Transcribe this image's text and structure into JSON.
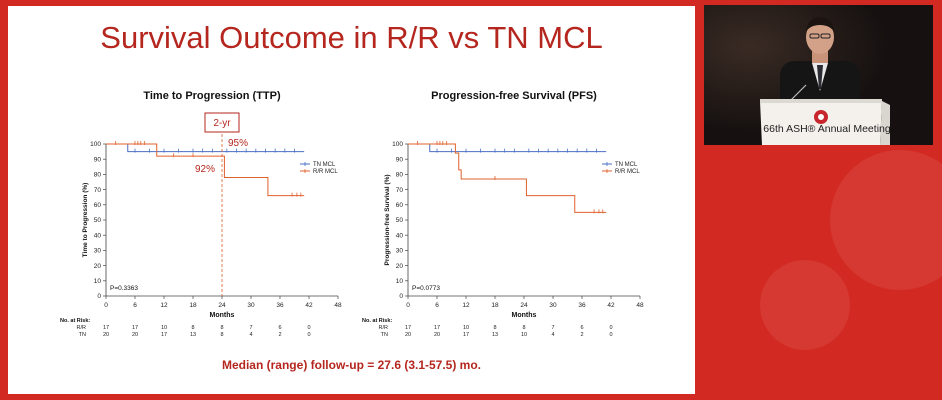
{
  "slide": {
    "title": "Survival Outcome in R/R vs TN MCL",
    "footnote": "Median (range) follow-up = 27.6 (3.1-57.5) mo."
  },
  "video": {
    "podium_text": "66th ASH® Annual Meeting"
  },
  "colors": {
    "background": "#d22a23",
    "accent": "#b5261e",
    "tn_series": "#4a6fc6",
    "rr_series": "#e0612c"
  },
  "chart_data": [
    {
      "type": "line",
      "title": "Time to Progression (TTP)",
      "xlabel": "Months",
      "ylabel": "Time to Progression (%)",
      "xlim": [
        0,
        48
      ],
      "ylim": [
        0,
        100
      ],
      "xticks": [
        0,
        6,
        12,
        18,
        24,
        30,
        36,
        42,
        48
      ],
      "yticks": [
        0,
        10,
        20,
        30,
        40,
        50,
        60,
        70,
        80,
        90,
        100
      ],
      "p_value": "P=0.3363",
      "legend_position": "top-right",
      "series": [
        {
          "name": "TN MCL",
          "step_x": [
            0,
            4.5,
            41
          ],
          "step_y": [
            100,
            95,
            95
          ],
          "censor_x": [
            6,
            9,
            12,
            15,
            18,
            20,
            22,
            25,
            27,
            29,
            31,
            33,
            35,
            37,
            39
          ]
        },
        {
          "name": "R/R MCL",
          "step_x": [
            0,
            10.5,
            24.5,
            33.5,
            41
          ],
          "step_y": [
            100,
            92,
            78,
            66,
            66
          ],
          "censor_x": [
            2,
            6,
            6.6,
            7.2,
            8,
            14,
            18,
            38.5,
            39.5,
            40.3
          ]
        }
      ],
      "annotations": {
        "box_label": "2-yr",
        "box_x": 24,
        "tn_at_box": "95%",
        "rr_at_box": "92%"
      },
      "risk_table": {
        "header": "No. at Risk:",
        "timepoints": [
          0,
          6,
          12,
          18,
          24,
          30,
          36,
          42
        ],
        "rows": [
          {
            "label": "R/R",
            "values": [
              "17",
              "17",
              "10",
              "8",
              "8",
              "7",
              "6",
              "0"
            ]
          },
          {
            "label": "TN",
            "values": [
              "20",
              "20",
              "17",
              "13",
              "8",
              "4",
              "2",
              "0"
            ]
          }
        ]
      }
    },
    {
      "type": "line",
      "title": "Progression-free Survival (PFS)",
      "xlabel": "Months",
      "ylabel": "Progression-free Survival (%)",
      "xlim": [
        0,
        48
      ],
      "ylim": [
        0,
        100
      ],
      "xticks": [
        0,
        6,
        12,
        18,
        24,
        30,
        36,
        42,
        48
      ],
      "yticks": [
        0,
        10,
        20,
        30,
        40,
        50,
        60,
        70,
        80,
        90,
        100
      ],
      "p_value": "P=0.0773",
      "legend_position": "top-right",
      "series": [
        {
          "name": "TN MCL",
          "step_x": [
            0,
            4.5,
            41
          ],
          "step_y": [
            100,
            95,
            95
          ],
          "censor_x": [
            6,
            9,
            12,
            15,
            18,
            20,
            22,
            25,
            27,
            29,
            31,
            33,
            35,
            37,
            39
          ]
        },
        {
          "name": "R/R MCL",
          "step_x": [
            0,
            9.8,
            10.5,
            11,
            24.5,
            34.5,
            41
          ],
          "step_y": [
            100,
            94,
            83,
            77,
            66,
            55,
            55
          ],
          "censor_x": [
            2,
            6,
            6.6,
            7.2,
            8,
            18,
            38.5,
            39.5,
            40.3
          ]
        }
      ],
      "risk_table": {
        "header": "No. at Risk:",
        "timepoints": [
          0,
          6,
          12,
          18,
          24,
          30,
          36,
          42
        ],
        "rows": [
          {
            "label": "R/R",
            "values": [
              "17",
              "17",
              "10",
              "8",
              "8",
              "7",
              "6",
              "0"
            ]
          },
          {
            "label": "TN",
            "values": [
              "20",
              "20",
              "17",
              "13",
              "10",
              "4",
              "2",
              "0"
            ]
          }
        ]
      }
    }
  ]
}
